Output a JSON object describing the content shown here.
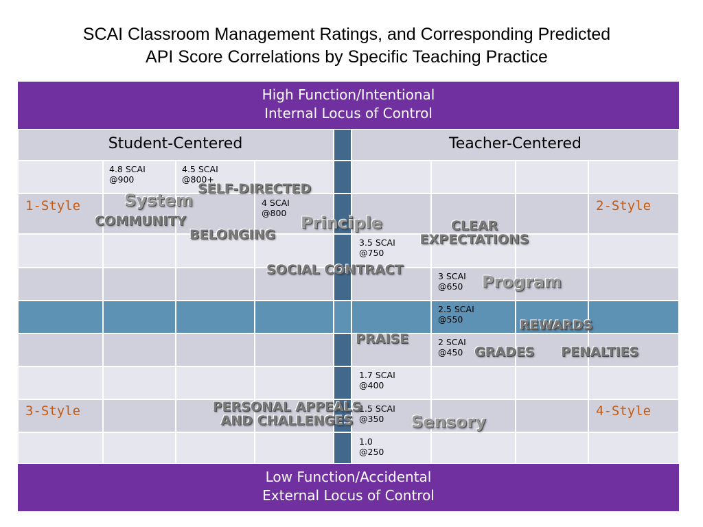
{
  "title": {
    "line1": "SCAI Classroom Management Ratings, and Corresponding Predicted",
    "line2": "API Score Correlations by Specific Teaching Practice"
  },
  "top_banner": {
    "line1": "High Function/Intentional",
    "line2": "Internal Locus of Control"
  },
  "bottom_banner": {
    "line1": "Low Function/Accidental",
    "line2": "External Locus of Control"
  },
  "headers": {
    "left": "Student-Centered",
    "right": "Teacher-Centered"
  },
  "styles": {
    "s1": "1-Style",
    "s2": "2-Style",
    "s3": "3-Style",
    "s4": "4-Style"
  },
  "scores": {
    "s48": "4.8 SCAI\n@900",
    "s45": "4.5 SCAI\n@800+",
    "s40": "4 SCAI\n@800",
    "s35": "3.5 SCAI\n@750",
    "s30": "3 SCAI\n@650",
    "s25": "2.5 SCAI\n@550",
    "s20": "2 SCAI\n@450",
    "s17": "1.7 SCAI\n@400",
    "s15": "1.5 SCAI\n@350",
    "s10": "1.0\n@250"
  },
  "overlays": {
    "self_directed": "SELF-DIRECTED",
    "system": "System",
    "community": "COMMUNITY",
    "belonging": "BELONGING",
    "principle": "Principle",
    "clear_expectations": "CLEAR\nEXPECTATIONS",
    "social_contract": "SOCIAL CONTRACT",
    "program": "Program",
    "rewards": "REWARDS",
    "praise": "PRAISE",
    "grades": "GRADES",
    "penalties": "PENALTIES",
    "personal_appeals": "PERSONAL APPEALS\nAND CHALLENGES",
    "sensory": "Sensory"
  },
  "colors": {
    "banner": "#7030a0",
    "style_label": "#c55a11",
    "divider": "#42688c",
    "highlight_row": "#5d92b5"
  }
}
